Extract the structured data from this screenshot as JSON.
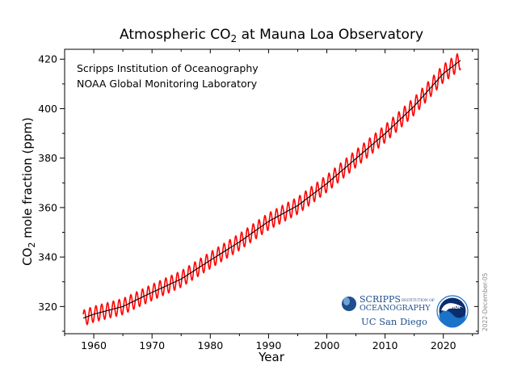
{
  "chart_data": {
    "type": "line",
    "title": "Atmospheric CO",
    "title_sub": "2",
    "title_rest": " at Mauna Loa Observatory",
    "xlabel": "Year",
    "ylabel_pre": "CO",
    "ylabel_sub": "2",
    "ylabel_post": " mole fraction (ppm)",
    "xlim": [
      1955,
      2026
    ],
    "ylim": [
      309,
      424
    ],
    "xticks": [
      1960,
      1970,
      1980,
      1990,
      2000,
      2010,
      2020
    ],
    "yticks": [
      320,
      340,
      360,
      380,
      400,
      420
    ],
    "grid": false,
    "series": [
      {
        "role": "monthly",
        "color": "#ff0000",
        "seasonal_amplitude_ppm": 3.2,
        "x": [
          1958.2,
          2023.0
        ]
      },
      {
        "role": "trend",
        "color": "#000000",
        "x": [
          1958.2,
          1960,
          1965,
          1970,
          1975,
          1980,
          1985,
          1990,
          1995,
          2000,
          2005,
          2010,
          2015,
          2020,
          2023.0
        ],
        "y": [
          315.3,
          316.9,
          320.0,
          325.7,
          331.1,
          338.7,
          346.1,
          354.4,
          360.8,
          369.7,
          379.8,
          389.9,
          401.0,
          414.2,
          419.6
        ]
      }
    ],
    "annotations": [
      "Scripps Institution of Oceanography",
      "NOAA Global Monitoring Laboratory"
    ]
  },
  "logos": {
    "scripps_main": "SCRIPPS",
    "scripps_small": "INSTITUTION OF",
    "scripps_sub": "OCEANOGRAPHY",
    "ucsd": "UC San Diego",
    "noaa": "NOAA"
  },
  "date_stamp": "2022-December-05",
  "colors": {
    "monthly": "#ff0000",
    "trend": "#000000",
    "noaa_blue": "#1a73c9",
    "noaa_dark": "#0b2d6b",
    "scripps_blue": "#1f4e8c"
  }
}
